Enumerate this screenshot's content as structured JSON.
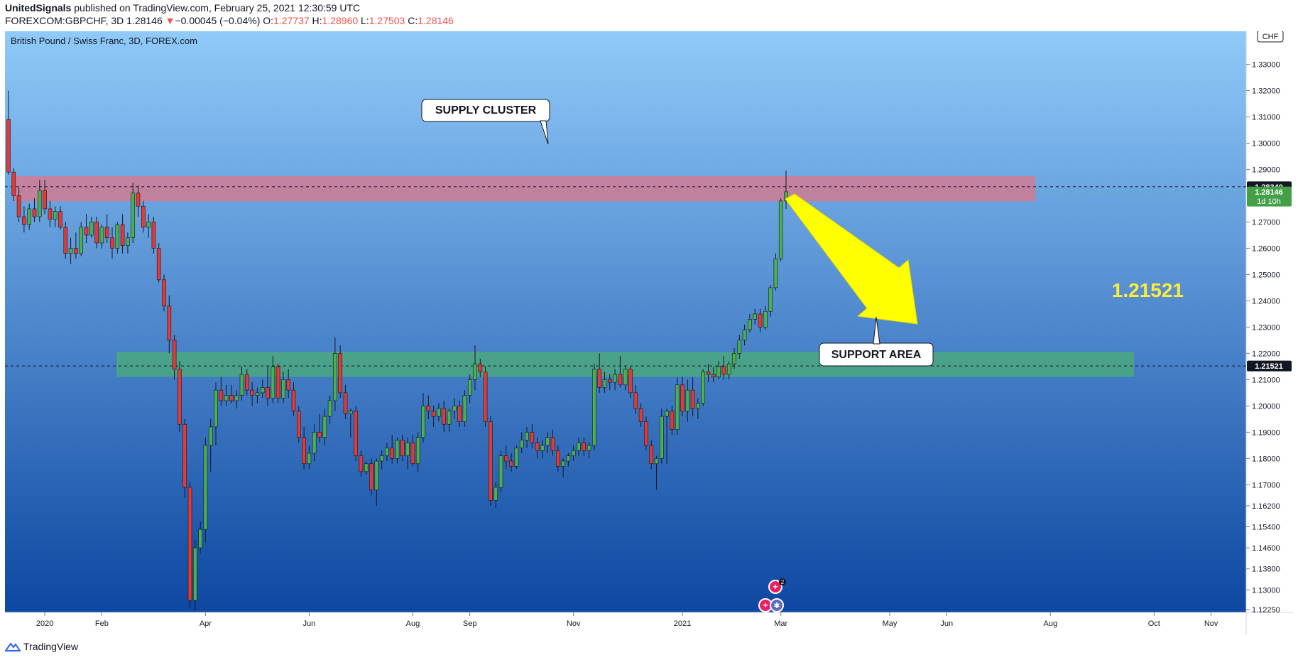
{
  "header": {
    "publisher": "UnitedSignals",
    "published_text": "published on TradingView.com, February 25, 2021 12:30:59 UTC",
    "symbol": "FOREXCOM:GBPCHF, 3D",
    "last": "1.28146",
    "change": "−0.00045 (−0.04%)",
    "o_label": "O:",
    "o": "1.27737",
    "h_label": "H:",
    "h": "1.28960",
    "l_label": "L:",
    "l": "1.27503",
    "c_label": "C:",
    "c": "1.28146"
  },
  "footer": {
    "brand": "TradingView"
  },
  "colors": {
    "bg_top": "#90caf9",
    "bg_bottom": "#0d47a1",
    "bull": "#4caf50",
    "bear": "#e53935",
    "supply_zone": "#e57385",
    "support_zone": "#4caf73",
    "arrow": "#ffff00",
    "label_yellow": "#ffeb3b"
  },
  "chart_data": {
    "type": "candlestick",
    "title": "British Pound / Swiss Franc, 3D, FOREX.com",
    "currency": "CHF",
    "ylim": [
      1.1225,
      1.3415
    ],
    "y_ticks": [
      "1.33000",
      "1.32000",
      "1.31000",
      "1.30000",
      "1.29000",
      "1.27000",
      "1.26000",
      "1.25000",
      "1.24000",
      "1.23000",
      "1.22000",
      "1.21000",
      "1.20000",
      "1.19000",
      "1.18000",
      "1.17000",
      "1.16200",
      "1.15400",
      "1.14600",
      "1.13800",
      "1.13000",
      "1.12250"
    ],
    "x_ticks": [
      {
        "label": "2020",
        "bar": 7
      },
      {
        "label": "Feb",
        "bar": 18
      },
      {
        "label": "Apr",
        "bar": 38
      },
      {
        "label": "Jun",
        "bar": 58
      },
      {
        "label": "Aug",
        "bar": 78
      },
      {
        "label": "Sep",
        "bar": 89
      },
      {
        "label": "Nov",
        "bar": 109
      },
      {
        "label": "2021",
        "bar": 130
      },
      {
        "label": "Mar",
        "bar": 149
      },
      {
        "label": "May",
        "bar": 170
      },
      {
        "label": "Jun",
        "bar": 181
      },
      {
        "label": "Aug",
        "bar": 201
      },
      {
        "label": "Oct",
        "bar": 221
      },
      {
        "label": "Nov",
        "bar": 232
      }
    ],
    "zones": [
      {
        "name": "supply",
        "from_bar": 1,
        "to_bar": 198,
        "low": 1.2781,
        "high": 1.2872
      },
      {
        "name": "support",
        "from_bar": 21,
        "to_bar": 217,
        "low": 1.2113,
        "high": 1.2203
      }
    ],
    "price_labels": [
      {
        "value": "1.28340",
        "sub": "",
        "style": "black"
      },
      {
        "value": "1.28146",
        "sub": "1d 10h",
        "style": "green"
      },
      {
        "value": "1.21521",
        "sub": "",
        "style": "black"
      }
    ],
    "annotations": [
      {
        "text": "SUPPLY CLUSTER"
      },
      {
        "text": "SUPPORT AREA"
      },
      {
        "text": "1.21521"
      }
    ],
    "candles": [
      [
        1.309,
        1.32,
        1.288,
        1.289
      ],
      [
        1.289,
        1.2905,
        1.278,
        1.28
      ],
      [
        1.28,
        1.283,
        1.27,
        1.272
      ],
      [
        1.272,
        1.276,
        1.266,
        1.269
      ],
      [
        1.269,
        1.277,
        1.267,
        1.275
      ],
      [
        1.275,
        1.279,
        1.27,
        1.272
      ],
      [
        1.272,
        1.286,
        1.27,
        1.282
      ],
      [
        1.282,
        1.286,
        1.273,
        1.275
      ],
      [
        1.275,
        1.278,
        1.268,
        1.271
      ],
      [
        1.271,
        1.276,
        1.268,
        1.274
      ],
      [
        1.274,
        1.276,
        1.267,
        1.268
      ],
      [
        1.268,
        1.27,
        1.256,
        1.258
      ],
      [
        1.258,
        1.264,
        1.254,
        1.26
      ],
      [
        1.26,
        1.266,
        1.256,
        1.258
      ],
      [
        1.258,
        1.27,
        1.257,
        1.268
      ],
      [
        1.268,
        1.273,
        1.262,
        1.265
      ],
      [
        1.265,
        1.272,
        1.264,
        1.27
      ],
      [
        1.27,
        1.272,
        1.26,
        1.262
      ],
      [
        1.262,
        1.269,
        1.26,
        1.268
      ],
      [
        1.268,
        1.273,
        1.262,
        1.264
      ],
      [
        1.264,
        1.268,
        1.256,
        1.26
      ],
      [
        1.26,
        1.27,
        1.258,
        1.269
      ],
      [
        1.269,
        1.273,
        1.258,
        1.261
      ],
      [
        1.261,
        1.266,
        1.258,
        1.264
      ],
      [
        1.264,
        1.285,
        1.262,
        1.281
      ],
      [
        1.281,
        1.284,
        1.272,
        1.276
      ],
      [
        1.276,
        1.278,
        1.266,
        1.268
      ],
      [
        1.268,
        1.273,
        1.264,
        1.27
      ],
      [
        1.27,
        1.272,
        1.258,
        1.26
      ],
      [
        1.26,
        1.262,
        1.247,
        1.248
      ],
      [
        1.248,
        1.25,
        1.236,
        1.238
      ],
      [
        1.238,
        1.242,
        1.22,
        1.225
      ],
      [
        1.225,
        1.227,
        1.21,
        1.214
      ],
      [
        1.214,
        1.217,
        1.19,
        1.193
      ],
      [
        1.193,
        1.195,
        1.165,
        1.169
      ],
      [
        1.169,
        1.171,
        1.123,
        1.126
      ],
      [
        1.126,
        1.149,
        1.1225,
        1.146
      ],
      [
        1.146,
        1.156,
        1.144,
        1.153
      ],
      [
        1.153,
        1.188,
        1.148,
        1.185
      ],
      [
        1.185,
        1.195,
        1.175,
        1.192
      ],
      [
        1.192,
        1.209,
        1.185,
        1.206
      ],
      [
        1.206,
        1.211,
        1.2,
        1.202
      ],
      [
        1.202,
        1.208,
        1.2,
        1.204
      ],
      [
        1.204,
        1.208,
        1.201,
        1.202
      ],
      [
        1.202,
        1.206,
        1.199,
        1.204
      ],
      [
        1.204,
        1.215,
        1.202,
        1.212
      ],
      [
        1.212,
        1.214,
        1.204,
        1.206
      ],
      [
        1.206,
        1.209,
        1.2,
        1.204
      ],
      [
        1.204,
        1.207,
        1.201,
        1.205
      ],
      [
        1.205,
        1.21,
        1.203,
        1.207
      ],
      [
        1.207,
        1.215,
        1.2,
        1.203
      ],
      [
        1.203,
        1.219,
        1.201,
        1.215
      ],
      [
        1.215,
        1.216,
        1.201,
        1.203
      ],
      [
        1.203,
        1.213,
        1.201,
        1.21
      ],
      [
        1.21,
        1.214,
        1.203,
        1.206
      ],
      [
        1.206,
        1.209,
        1.196,
        1.198
      ],
      [
        1.198,
        1.2,
        1.186,
        1.188
      ],
      [
        1.188,
        1.192,
        1.176,
        1.178
      ],
      [
        1.178,
        1.185,
        1.176,
        1.182
      ],
      [
        1.182,
        1.193,
        1.179,
        1.19
      ],
      [
        1.19,
        1.197,
        1.186,
        1.188
      ],
      [
        1.188,
        1.199,
        1.185,
        1.196
      ],
      [
        1.196,
        1.204,
        1.193,
        1.202
      ],
      [
        1.202,
        1.226,
        1.198,
        1.22
      ],
      [
        1.22,
        1.223,
        1.203,
        1.205
      ],
      [
        1.205,
        1.208,
        1.195,
        1.197
      ],
      [
        1.197,
        1.199,
        1.188,
        1.198
      ],
      [
        1.198,
        1.2,
        1.179,
        1.181
      ],
      [
        1.181,
        1.183,
        1.173,
        1.175
      ],
      [
        1.175,
        1.179,
        1.174,
        1.178
      ],
      [
        1.178,
        1.18,
        1.166,
        1.168
      ],
      [
        1.168,
        1.18,
        1.162,
        1.179
      ],
      [
        1.179,
        1.183,
        1.176,
        1.181
      ],
      [
        1.181,
        1.186,
        1.179,
        1.184
      ],
      [
        1.184,
        1.189,
        1.178,
        1.18
      ],
      [
        1.18,
        1.188,
        1.178,
        1.187
      ],
      [
        1.187,
        1.189,
        1.179,
        1.181
      ],
      [
        1.181,
        1.188,
        1.176,
        1.186
      ],
      [
        1.186,
        1.189,
        1.177,
        1.178
      ],
      [
        1.178,
        1.19,
        1.175,
        1.188
      ],
      [
        1.188,
        1.205,
        1.186,
        1.2
      ],
      [
        1.2,
        1.204,
        1.195,
        1.198
      ],
      [
        1.198,
        1.2,
        1.192,
        1.196
      ],
      [
        1.196,
        1.201,
        1.194,
        1.199
      ],
      [
        1.199,
        1.202,
        1.19,
        1.193
      ],
      [
        1.193,
        1.199,
        1.19,
        1.198
      ],
      [
        1.198,
        1.203,
        1.195,
        1.2
      ],
      [
        1.2,
        1.202,
        1.192,
        1.194
      ],
      [
        1.194,
        1.206,
        1.192,
        1.204
      ],
      [
        1.204,
        1.212,
        1.201,
        1.21
      ],
      [
        1.21,
        1.223,
        1.206,
        1.216
      ],
      [
        1.216,
        1.218,
        1.211,
        1.213
      ],
      [
        1.213,
        1.215,
        1.192,
        1.194
      ],
      [
        1.194,
        1.196,
        1.162,
        1.164
      ],
      [
        1.164,
        1.171,
        1.161,
        1.169
      ],
      [
        1.169,
        1.183,
        1.167,
        1.181
      ],
      [
        1.181,
        1.185,
        1.176,
        1.179
      ],
      [
        1.179,
        1.182,
        1.175,
        1.177
      ],
      [
        1.177,
        1.185,
        1.176,
        1.184
      ],
      [
        1.184,
        1.19,
        1.182,
        1.187
      ],
      [
        1.187,
        1.192,
        1.184,
        1.19
      ],
      [
        1.19,
        1.193,
        1.184,
        1.186
      ],
      [
        1.186,
        1.188,
        1.18,
        1.183
      ],
      [
        1.183,
        1.187,
        1.18,
        1.185
      ],
      [
        1.185,
        1.19,
        1.182,
        1.188
      ],
      [
        1.188,
        1.191,
        1.181,
        1.183
      ],
      [
        1.183,
        1.185,
        1.175,
        1.177
      ],
      [
        1.177,
        1.18,
        1.173,
        1.179
      ],
      [
        1.179,
        1.182,
        1.177,
        1.181
      ],
      [
        1.181,
        1.185,
        1.179,
        1.183
      ],
      [
        1.183,
        1.188,
        1.181,
        1.186
      ],
      [
        1.186,
        1.188,
        1.181,
        1.183
      ],
      [
        1.183,
        1.186,
        1.18,
        1.185
      ],
      [
        1.185,
        1.216,
        1.183,
        1.214
      ],
      [
        1.214,
        1.22,
        1.205,
        1.207
      ],
      [
        1.207,
        1.213,
        1.205,
        1.21
      ],
      [
        1.21,
        1.212,
        1.206,
        1.209
      ],
      [
        1.209,
        1.214,
        1.206,
        1.212
      ],
      [
        1.212,
        1.219,
        1.207,
        1.208
      ],
      [
        1.208,
        1.215,
        1.206,
        1.214
      ],
      [
        1.214,
        1.215,
        1.203,
        1.205
      ],
      [
        1.205,
        1.208,
        1.197,
        1.199
      ],
      [
        1.199,
        1.201,
        1.192,
        1.194
      ],
      [
        1.194,
        1.196,
        1.183,
        1.185
      ],
      [
        1.185,
        1.187,
        1.176,
        1.178
      ],
      [
        1.178,
        1.181,
        1.168,
        1.18
      ],
      [
        1.18,
        1.199,
        1.178,
        1.196
      ],
      [
        1.196,
        1.199,
        1.178,
        1.198
      ],
      [
        1.198,
        1.2,
        1.189,
        1.191
      ],
      [
        1.191,
        1.211,
        1.189,
        1.208
      ],
      [
        1.208,
        1.211,
        1.196,
        1.198
      ],
      [
        1.198,
        1.21,
        1.194,
        1.206
      ],
      [
        1.206,
        1.211,
        1.196,
        1.199
      ],
      [
        1.199,
        1.203,
        1.195,
        1.201
      ],
      [
        1.201,
        1.214,
        1.2,
        1.213
      ],
      [
        1.213,
        1.216,
        1.209,
        1.212
      ],
      [
        1.212,
        1.215,
        1.209,
        1.211
      ],
      [
        1.211,
        1.217,
        1.21,
        1.215
      ],
      [
        1.215,
        1.219,
        1.21,
        1.212
      ],
      [
        1.212,
        1.217,
        1.21,
        1.216
      ],
      [
        1.216,
        1.222,
        1.214,
        1.22
      ],
      [
        1.22,
        1.227,
        1.218,
        1.225
      ],
      [
        1.225,
        1.231,
        1.223,
        1.229
      ],
      [
        1.229,
        1.235,
        1.228,
        1.233
      ],
      [
        1.233,
        1.237,
        1.231,
        1.235
      ],
      [
        1.235,
        1.237,
        1.228,
        1.23
      ],
      [
        1.23,
        1.238,
        1.229,
        1.236
      ],
      [
        1.236,
        1.246,
        1.234,
        1.245
      ],
      [
        1.245,
        1.258,
        1.244,
        1.256
      ],
      [
        1.256,
        1.279,
        1.255,
        1.278
      ],
      [
        1.278,
        1.2896,
        1.275,
        1.2815
      ]
    ]
  }
}
